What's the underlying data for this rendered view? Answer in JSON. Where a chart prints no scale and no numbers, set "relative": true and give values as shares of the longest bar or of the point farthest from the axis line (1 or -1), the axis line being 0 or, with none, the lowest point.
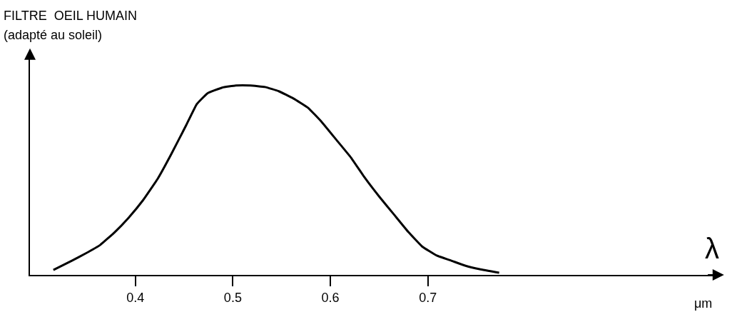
{
  "chart_data": {
    "type": "line",
    "title": "FILTRE  OEIL HUMAIN",
    "subtitle": "(adapté au soleil)",
    "xlabel": "λ",
    "annotations": [
      "μm"
    ],
    "relative": true,
    "xlim": [
      0.292,
      1.0
    ],
    "xticks": [
      0.4,
      0.5,
      0.6,
      0.7
    ],
    "grid": false,
    "marker": "none",
    "line_style": "solid",
    "series": [
      {
        "color": "#000000",
        "x": [
          0.316,
          0.335,
          0.349,
          0.364,
          0.379,
          0.393,
          0.408,
          0.423,
          0.437,
          0.452,
          0.463,
          0.474,
          0.489,
          0.503,
          0.518,
          0.533,
          0.547,
          0.562,
          0.577,
          0.591,
          0.606,
          0.621,
          0.635,
          0.65,
          0.665,
          0.68,
          0.694,
          0.709,
          0.724,
          0.738,
          0.753,
          0.773
        ],
        "values": [
          0.026,
          0.075,
          0.113,
          0.158,
          0.226,
          0.301,
          0.395,
          0.508,
          0.639,
          0.789,
          0.902,
          0.959,
          0.989,
          1,
          1,
          0.992,
          0.97,
          0.932,
          0.883,
          0.808,
          0.714,
          0.62,
          0.515,
          0.414,
          0.32,
          0.226,
          0.15,
          0.102,
          0.075,
          0.049,
          0.03,
          0.011
        ]
      }
    ]
  }
}
